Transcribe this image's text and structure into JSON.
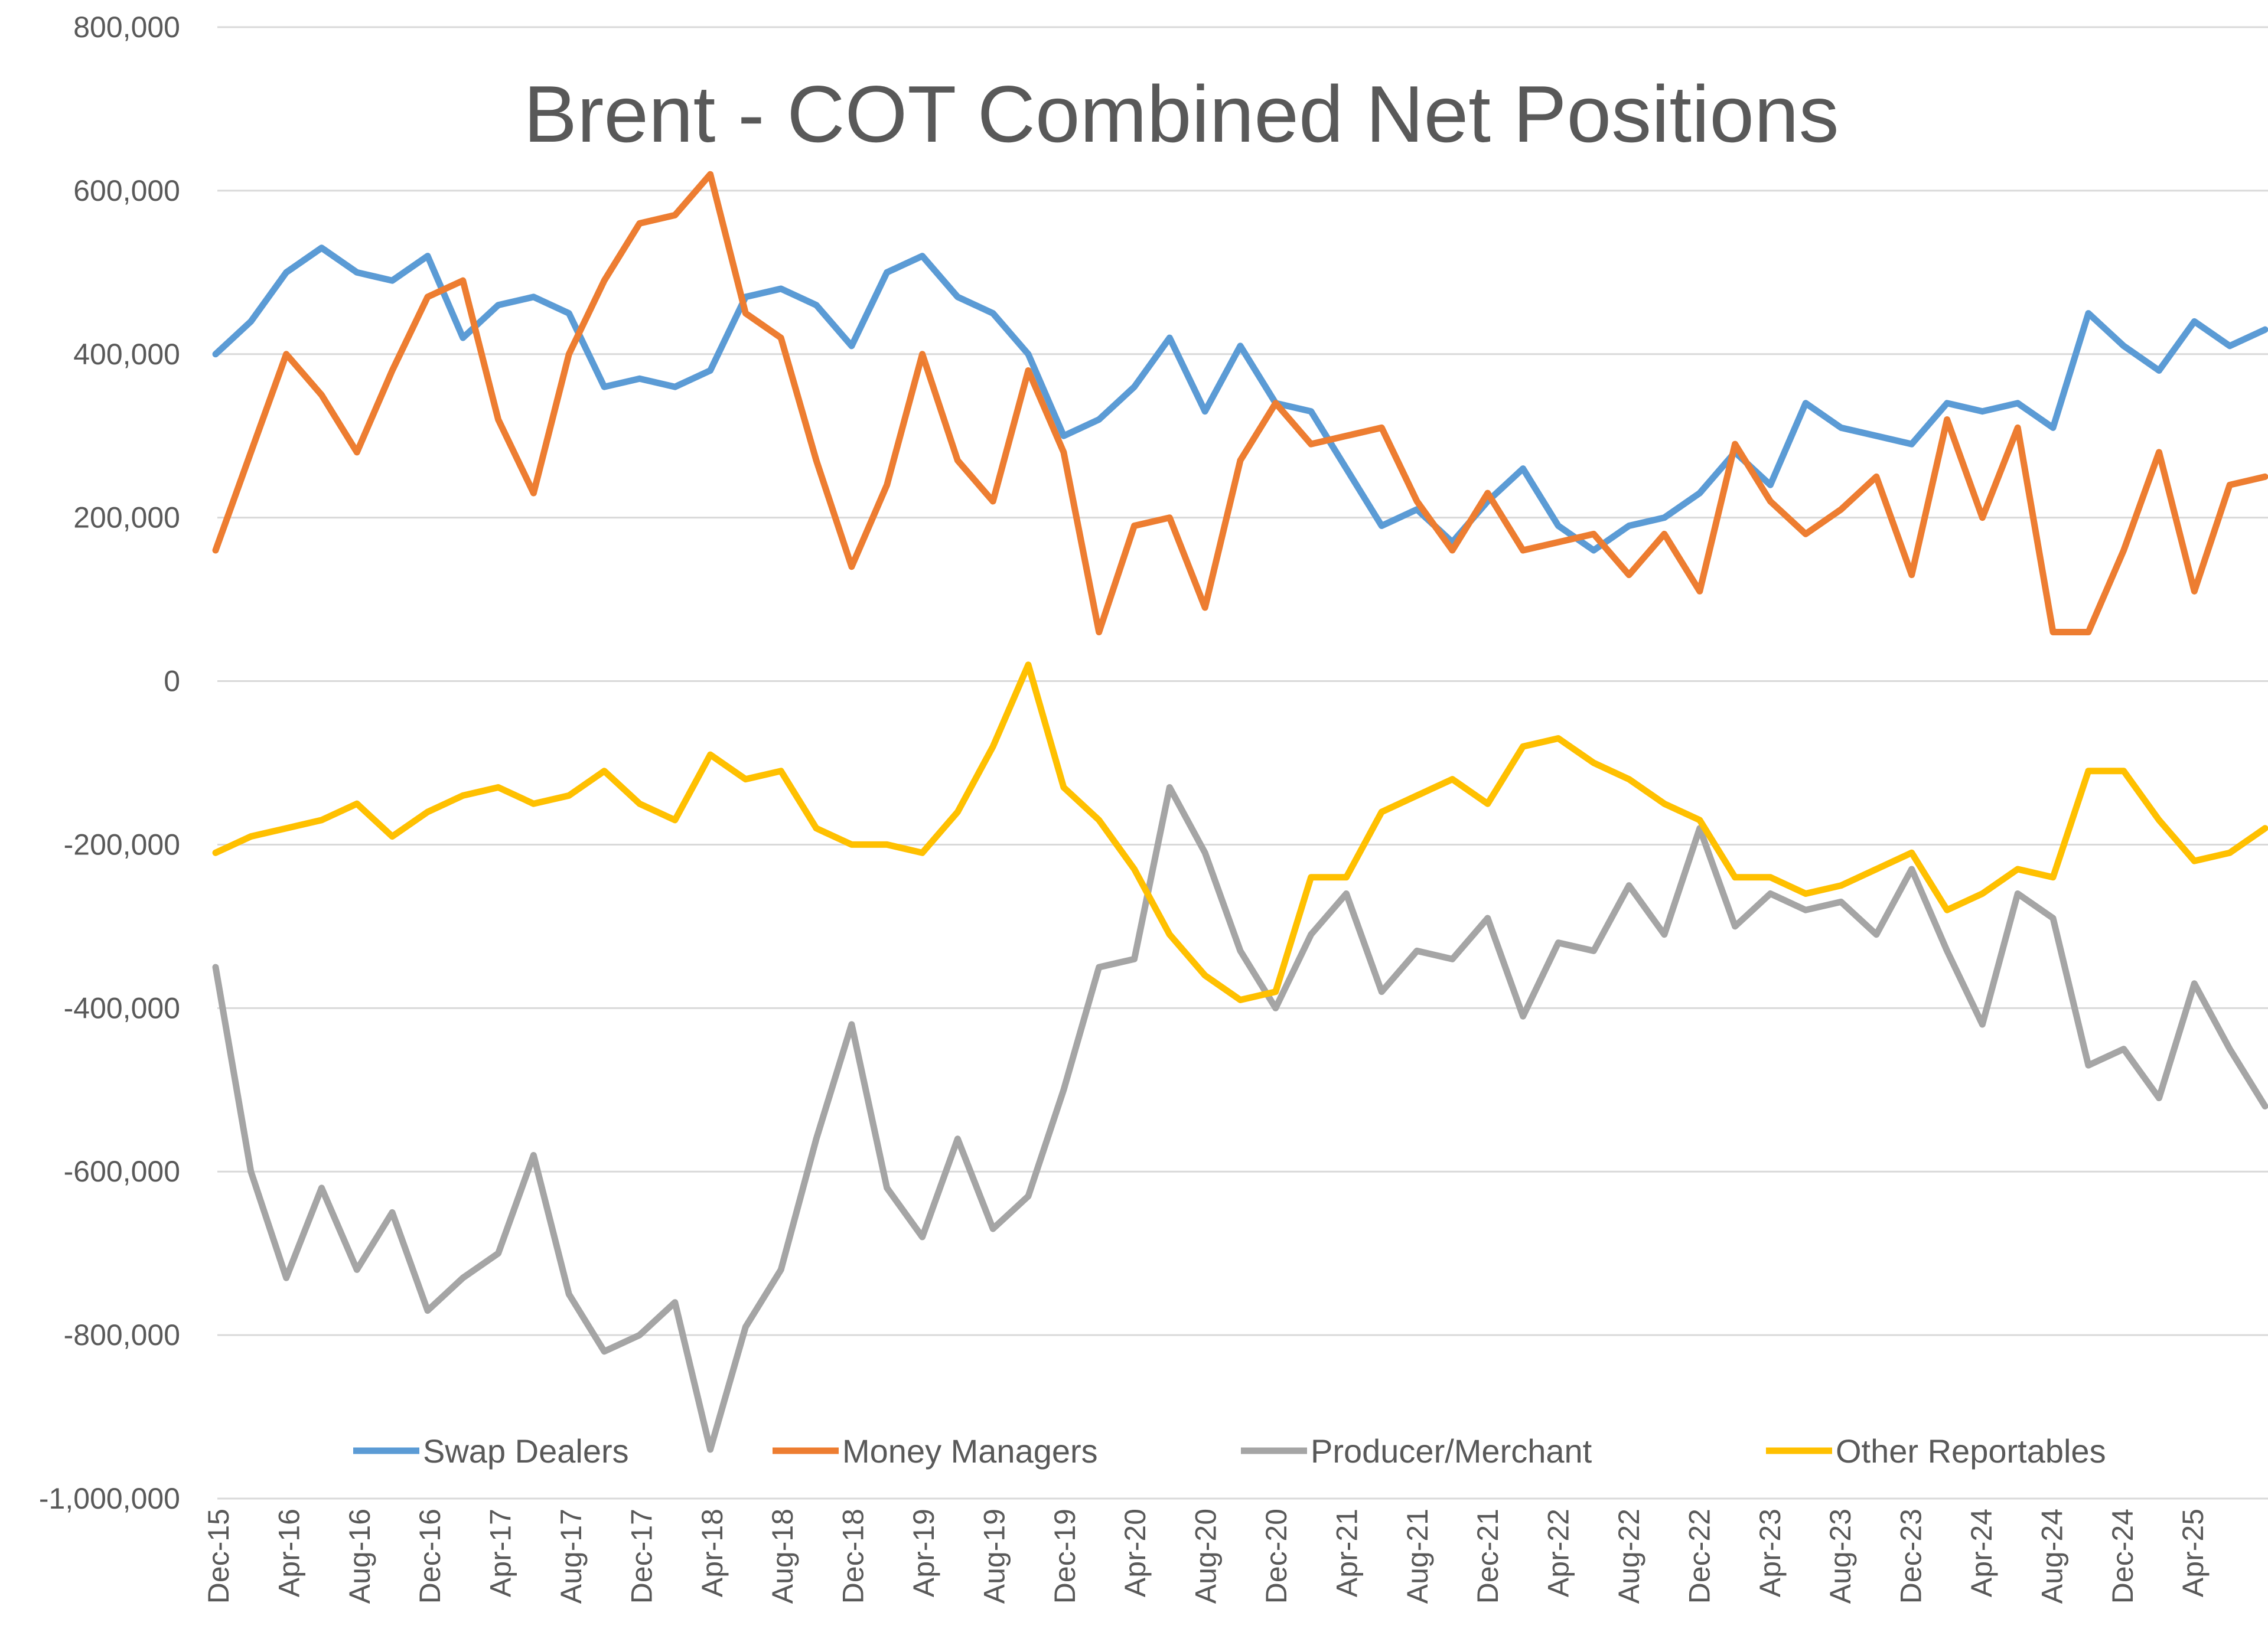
{
  "chart_data": {
    "type": "line",
    "title": "Brent - COT Combined Net Positions",
    "xlabel": "",
    "ylabel": "",
    "ylim": [
      -1000000,
      800000
    ],
    "yticks": [
      {
        "value": 800000,
        "label": "800,000"
      },
      {
        "value": 600000,
        "label": "600,000"
      },
      {
        "value": 400000,
        "label": "400,000"
      },
      {
        "value": 200000,
        "label": "200,000"
      },
      {
        "value": 0,
        "label": "0"
      },
      {
        "value": -200000,
        "label": "-200,000"
      },
      {
        "value": -400000,
        "label": "-400,000"
      },
      {
        "value": -600000,
        "label": "-600,000"
      },
      {
        "value": -800000,
        "label": "-800,000"
      },
      {
        "value": -1000000,
        "label": "-1,000,000"
      }
    ],
    "x_tick_labels": [
      "Dec-15",
      "Apr-16",
      "Aug-16",
      "Dec-16",
      "Apr-17",
      "Aug-17",
      "Dec-17",
      "Apr-18",
      "Aug-18",
      "Dec-18",
      "Apr-19",
      "Aug-19",
      "Dec-19",
      "Apr-20",
      "Aug-20",
      "Dec-20",
      "Apr-21",
      "Aug-21",
      "Dec-21",
      "Apr-22",
      "Aug-22",
      "Dec-22",
      "Apr-23",
      "Aug-23",
      "Dec-23",
      "Apr-24",
      "Aug-24",
      "Dec-24",
      "Apr-25"
    ],
    "x": [
      "Dec-15",
      "Feb-16",
      "Apr-16",
      "Jun-16",
      "Aug-16",
      "Oct-16",
      "Dec-16",
      "Feb-17",
      "Apr-17",
      "Jun-17",
      "Aug-17",
      "Oct-17",
      "Dec-17",
      "Feb-18",
      "Apr-18",
      "Jun-18",
      "Aug-18",
      "Oct-18",
      "Dec-18",
      "Feb-19",
      "Apr-19",
      "Jun-19",
      "Aug-19",
      "Oct-19",
      "Dec-19",
      "Feb-20",
      "Apr-20",
      "Jun-20",
      "Aug-20",
      "Oct-20",
      "Dec-20",
      "Feb-21",
      "Apr-21",
      "Jun-21",
      "Aug-21",
      "Oct-21",
      "Dec-21",
      "Feb-22",
      "Apr-22",
      "Jun-22",
      "Aug-22",
      "Oct-22",
      "Dec-22",
      "Feb-23",
      "Apr-23",
      "Jun-23",
      "Aug-23",
      "Oct-23",
      "Dec-23",
      "Feb-24",
      "Apr-24",
      "Jun-24",
      "Aug-24",
      "Oct-24",
      "Dec-24",
      "Feb-25",
      "Apr-25",
      "Jun-25",
      "Jul-25"
    ],
    "grid": true,
    "legend_position": "bottom",
    "series": [
      {
        "name": "Swap Dealers",
        "color": "#5B9BD5",
        "values": [
          400000,
          440000,
          500000,
          530000,
          500000,
          490000,
          520000,
          420000,
          460000,
          470000,
          450000,
          360000,
          370000,
          360000,
          380000,
          470000,
          480000,
          460000,
          410000,
          500000,
          520000,
          470000,
          450000,
          400000,
          300000,
          320000,
          360000,
          420000,
          330000,
          410000,
          340000,
          330000,
          260000,
          190000,
          210000,
          170000,
          220000,
          260000,
          190000,
          160000,
          190000,
          200000,
          230000,
          280000,
          240000,
          340000,
          310000,
          300000,
          290000,
          340000,
          330000,
          340000,
          310000,
          450000,
          410000,
          380000,
          440000,
          410000,
          430000
        ]
      },
      {
        "name": "Money Managers",
        "color": "#ED7D31",
        "values": [
          160000,
          280000,
          400000,
          350000,
          280000,
          380000,
          470000,
          490000,
          320000,
          230000,
          400000,
          490000,
          560000,
          570000,
          620000,
          450000,
          420000,
          270000,
          140000,
          240000,
          400000,
          270000,
          220000,
          380000,
          280000,
          60000,
          190000,
          200000,
          90000,
          270000,
          340000,
          290000,
          300000,
          310000,
          220000,
          160000,
          230000,
          160000,
          170000,
          180000,
          130000,
          180000,
          110000,
          290000,
          220000,
          180000,
          210000,
          250000,
          130000,
          320000,
          200000,
          310000,
          60000,
          60000,
          160000,
          280000,
          110000,
          240000,
          250000
        ]
      },
      {
        "name": "Producer/Merchant",
        "color": "#A5A5A5",
        "values": [
          -350000,
          -600000,
          -730000,
          -620000,
          -720000,
          -650000,
          -770000,
          -730000,
          -700000,
          -580000,
          -750000,
          -820000,
          -800000,
          -760000,
          -940000,
          -790000,
          -720000,
          -560000,
          -420000,
          -620000,
          -680000,
          -560000,
          -670000,
          -630000,
          -500000,
          -350000,
          -340000,
          -130000,
          -210000,
          -330000,
          -400000,
          -310000,
          -260000,
          -380000,
          -330000,
          -340000,
          -290000,
          -410000,
          -320000,
          -330000,
          -250000,
          -310000,
          -180000,
          -300000,
          -260000,
          -280000,
          -270000,
          -310000,
          -230000,
          -330000,
          -420000,
          -260000,
          -290000,
          -470000,
          -450000,
          -510000,
          -370000,
          -450000,
          -520000
        ]
      },
      {
        "name": "Other Reportables",
        "color": "#FFC000",
        "values": [
          -210000,
          -190000,
          -180000,
          -170000,
          -150000,
          -190000,
          -160000,
          -140000,
          -130000,
          -150000,
          -140000,
          -110000,
          -150000,
          -170000,
          -90000,
          -120000,
          -110000,
          -180000,
          -200000,
          -200000,
          -210000,
          -160000,
          -80000,
          20000,
          -130000,
          -170000,
          -230000,
          -310000,
          -360000,
          -390000,
          -380000,
          -240000,
          -240000,
          -160000,
          -140000,
          -120000,
          -150000,
          -80000,
          -70000,
          -100000,
          -120000,
          -150000,
          -170000,
          -240000,
          -240000,
          -260000,
          -250000,
          -230000,
          -210000,
          -280000,
          -260000,
          -230000,
          -240000,
          -110000,
          -110000,
          -170000,
          -220000,
          -210000,
          -180000
        ]
      }
    ]
  }
}
